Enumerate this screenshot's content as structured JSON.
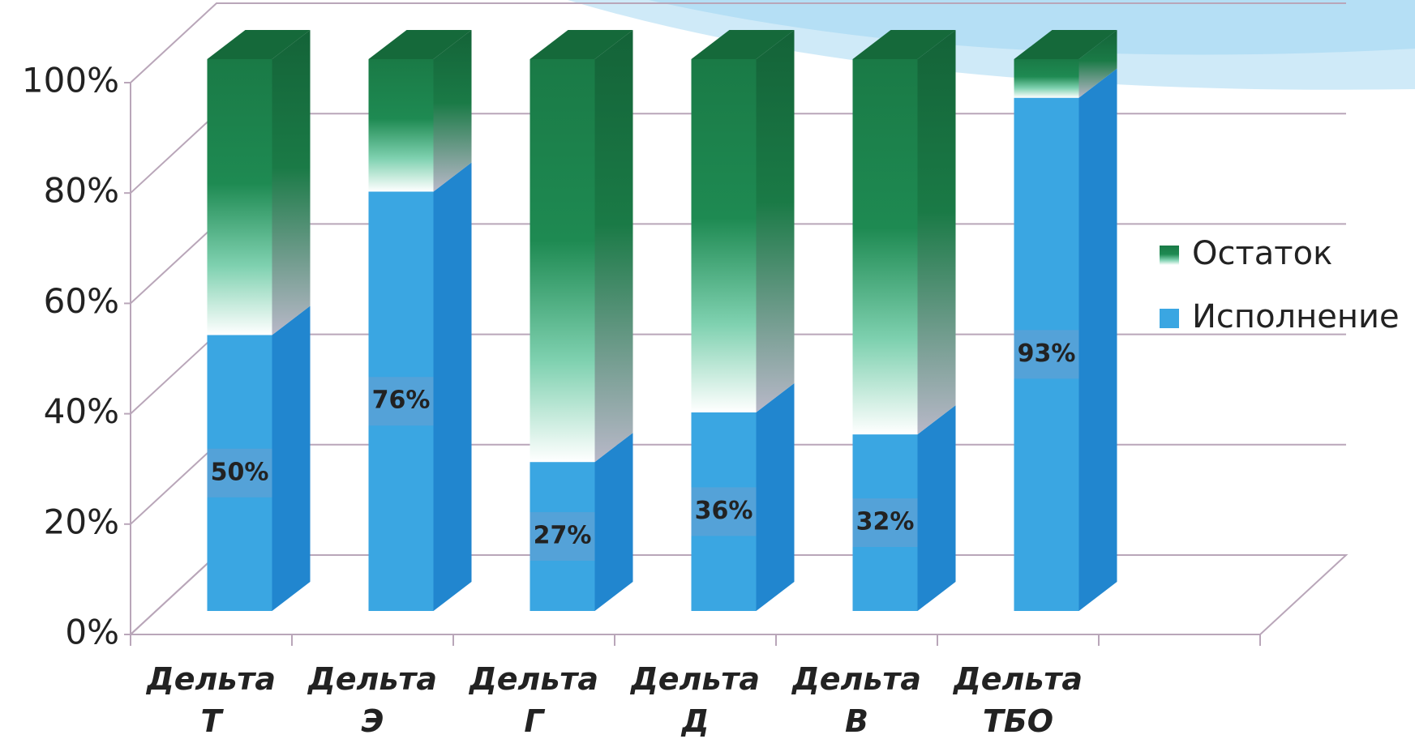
{
  "chart_data": {
    "type": "stacked_bar_3d",
    "categories": [
      "Дельта Т",
      "Дельта Э",
      "Дельта Г",
      "Дельта Д",
      "Дельта В",
      "Дельта ТБО"
    ],
    "series": [
      {
        "name": "Исполнение",
        "color": "#3aa6e2",
        "values": [
          50,
          76,
          27,
          36,
          32,
          93
        ],
        "value_labels": [
          "50%",
          "76%",
          "27%",
          "36%",
          "32%",
          "93%"
        ]
      },
      {
        "name": "Остаток",
        "color": "#1a7a46",
        "values": [
          50,
          24,
          73,
          64,
          68,
          7
        ]
      }
    ],
    "ylim": [
      0,
      100
    ],
    "yticks": [
      {
        "value": 0,
        "label": "0%"
      },
      {
        "value": 20,
        "label": "20%"
      },
      {
        "value": 40,
        "label": "40%"
      },
      {
        "value": 60,
        "label": "60%"
      },
      {
        "value": 80,
        "label": "80%"
      },
      {
        "value": 100,
        "label": "100%"
      }
    ],
    "grid": true,
    "legend": "right"
  }
}
